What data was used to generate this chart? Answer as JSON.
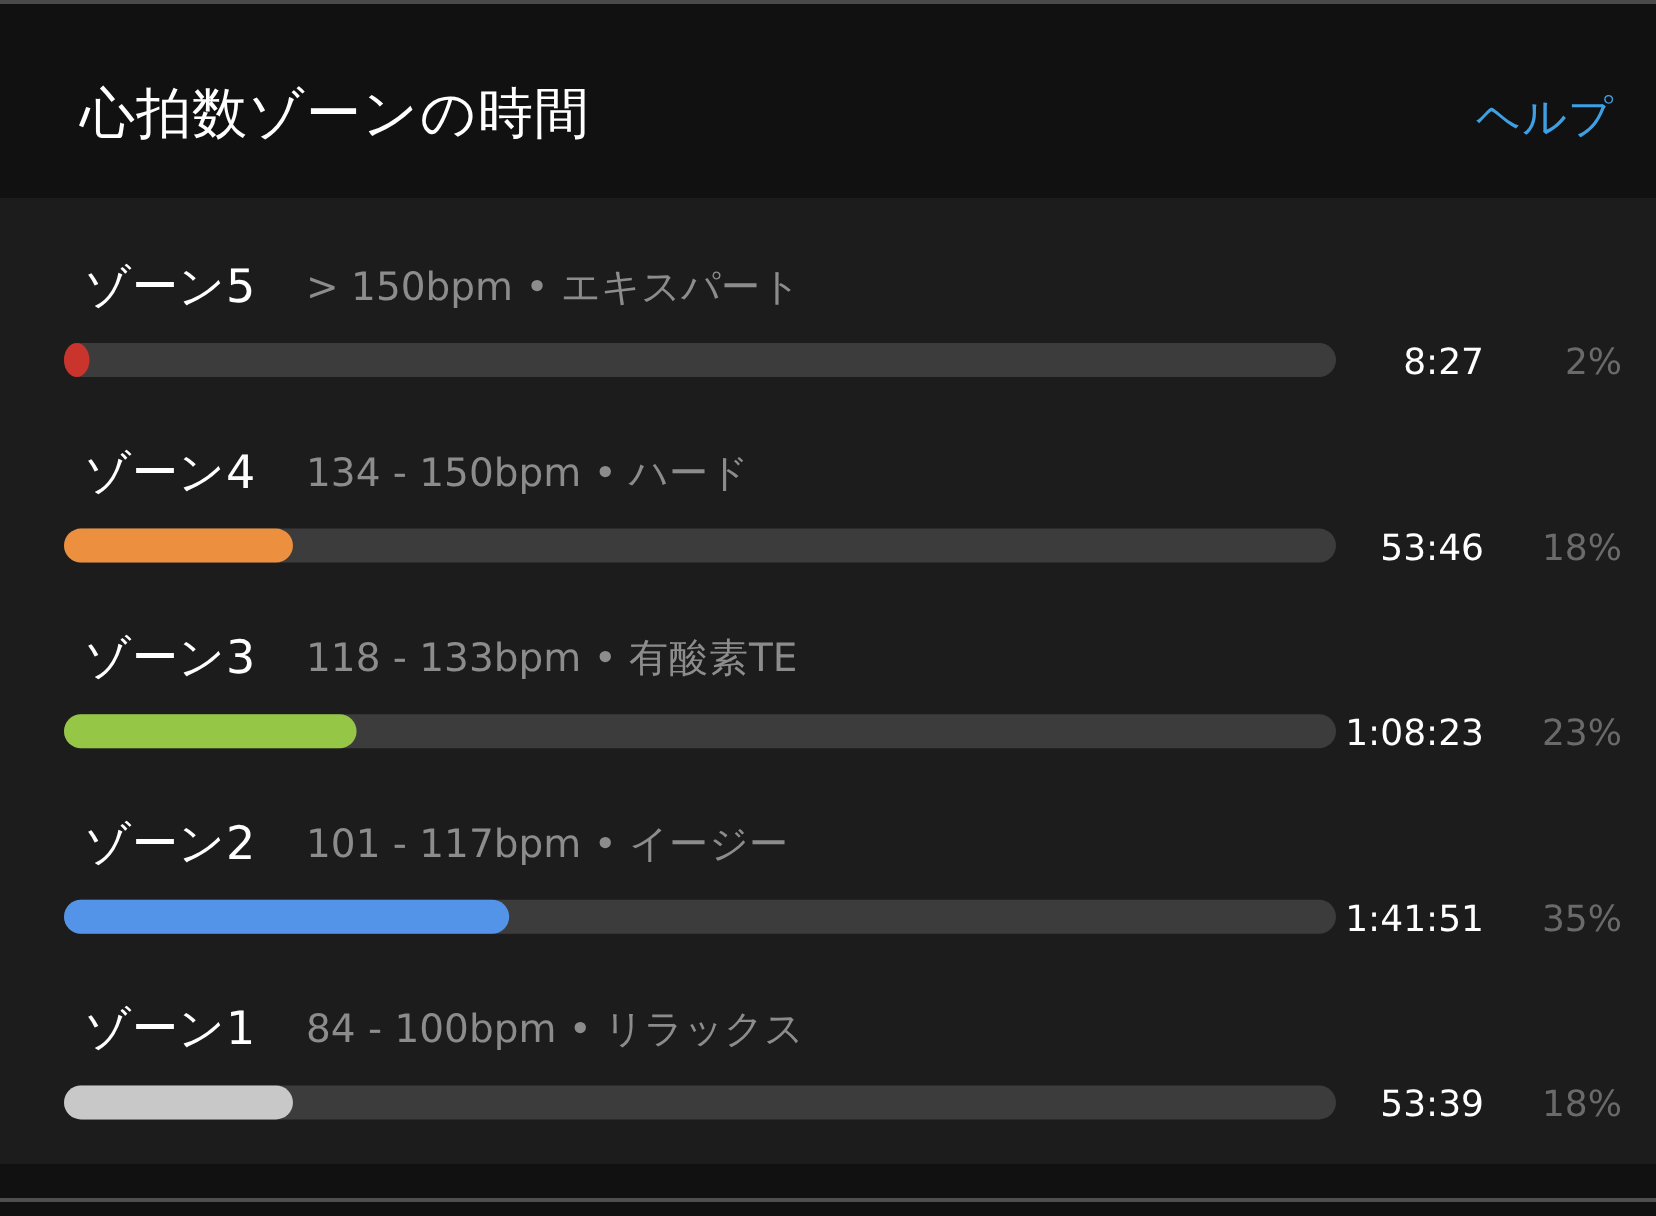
{
  "chart_data": {
    "type": "bar",
    "orientation": "horizontal",
    "title": "心拍数ゾーンの時間",
    "categories": [
      "ゾーン5",
      "ゾーン4",
      "ゾーン3",
      "ゾーン2",
      "ゾーン1"
    ],
    "values": [
      2,
      18,
      23,
      35,
      18
    ],
    "colors": [
      "#c9342c",
      "#ec8f3e",
      "#96c646",
      "#5394e8",
      "#c8c8c8"
    ],
    "xlim": [
      0,
      100
    ],
    "value_labels": [
      "2%",
      "18%",
      "23%",
      "35%",
      "18%"
    ],
    "tick_labels": "y",
    "annotations": [
      "ヘルプ",
      "> 150bpm • エキスパート",
      "8:27",
      "134 - 150bpm • ハード",
      "53:46",
      "118 - 133bpm • 有酸素TE",
      "1:08:23",
      "101 - 117bpm • イージー",
      "1:41:51",
      "84 - 100bpm • リラックス",
      "53:39"
    ]
  }
}
